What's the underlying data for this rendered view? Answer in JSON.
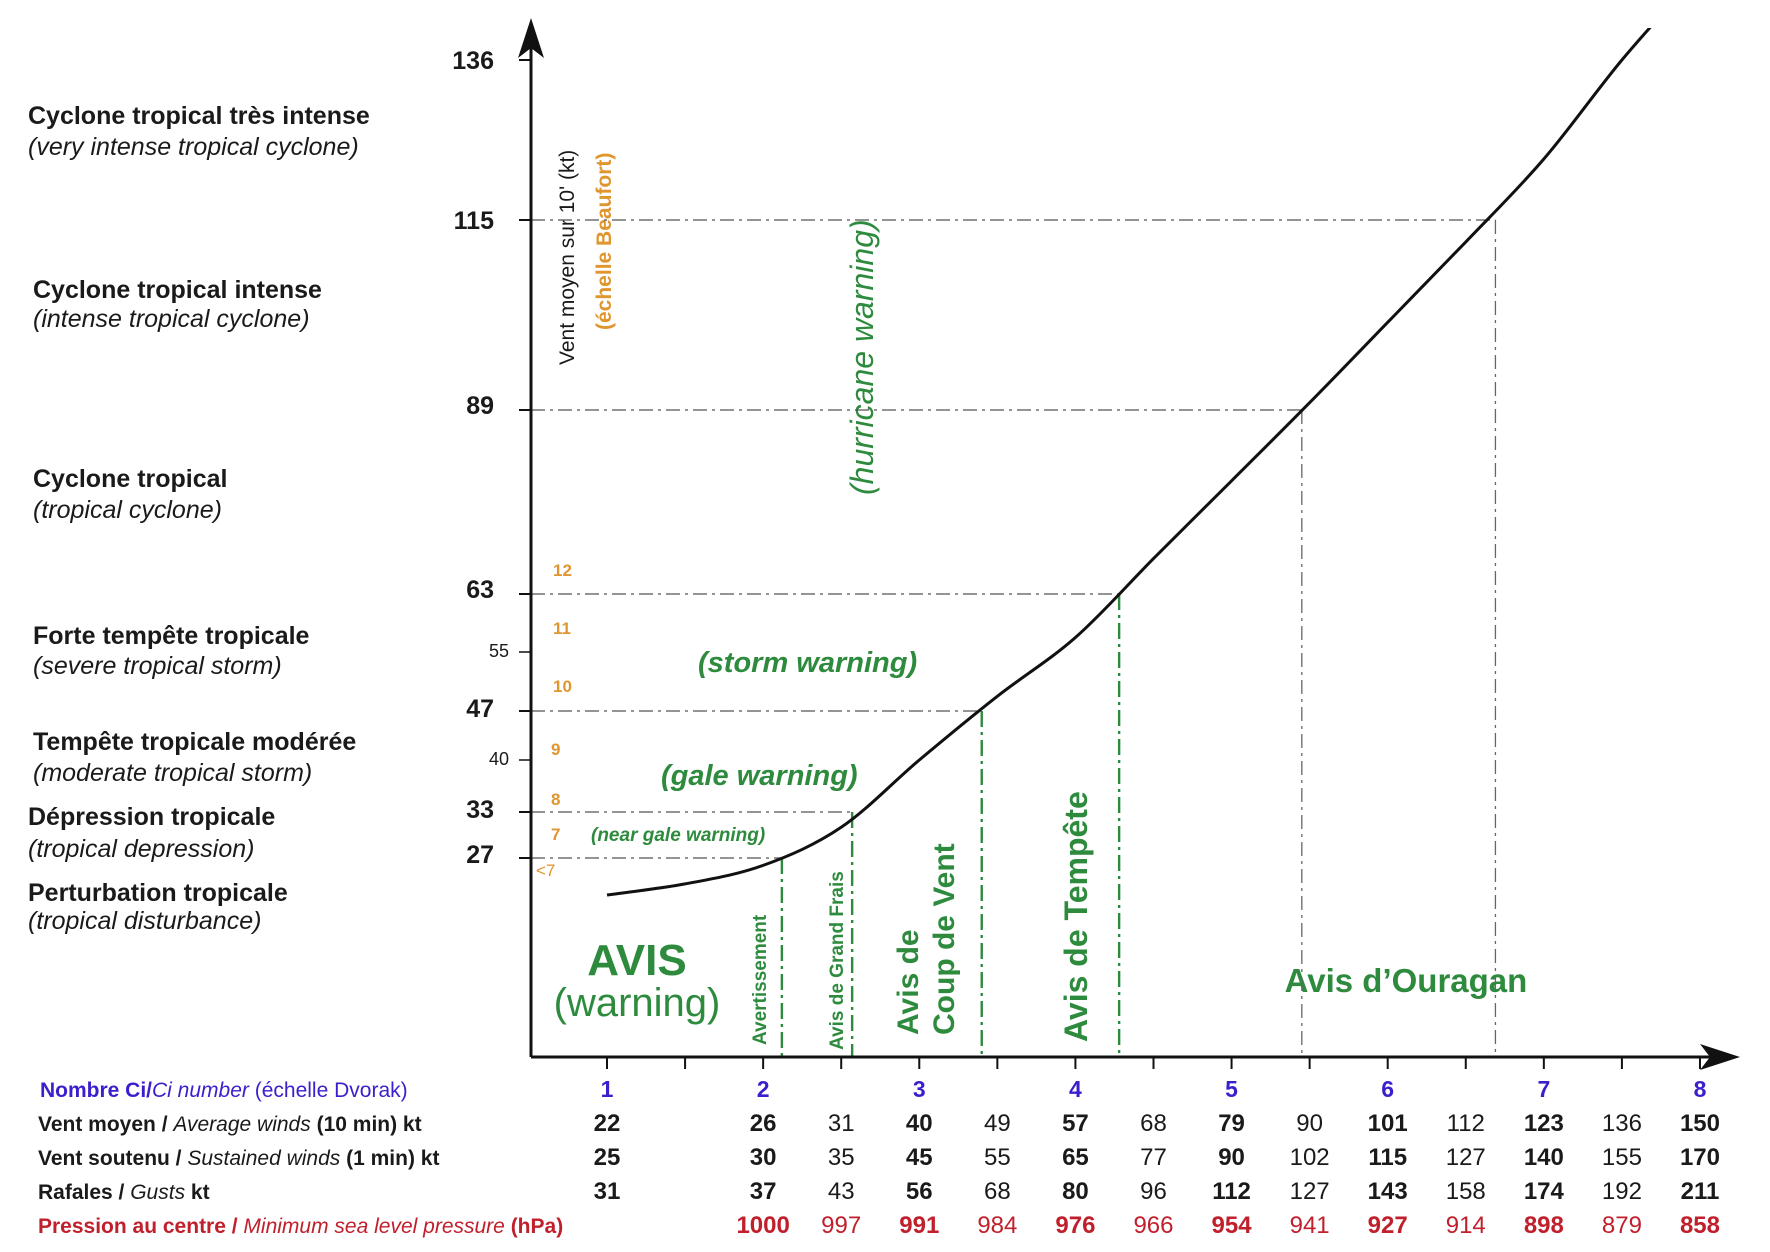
{
  "chart_data": {
    "type": "line",
    "title": "",
    "y_axis_label": "Vent moyen sur 10' (kt)",
    "y_axis_sublabel": "(échelle Beaufort)",
    "y_ticks_major": [
      "136",
      "115",
      "89",
      "63",
      "47",
      "33",
      "27"
    ],
    "y_ticks_minor": [
      "55",
      "40"
    ],
    "beaufort_labels": [
      "12",
      "11",
      "10",
      "9",
      "8",
      "7",
      "<7"
    ],
    "x_categories": [
      "1",
      "2",
      "3",
      "4",
      "5",
      "6",
      "7",
      "8"
    ],
    "curve": {
      "ci": [
        1,
        1.5,
        2,
        2.5,
        3,
        3.5,
        4,
        4.5,
        5,
        5.5,
        6,
        6.5,
        7,
        7.5,
        8
      ],
      "wind_10min_kt": [
        22,
        23.5,
        26,
        31,
        40,
        49,
        57,
        68,
        79,
        90,
        101,
        112,
        123,
        136,
        150
      ]
    },
    "thresholds": [
      {
        "wind_kt": 27,
        "ci": 2.12
      },
      {
        "wind_kt": 33,
        "ci": 2.57
      },
      {
        "wind_kt": 47,
        "ci": 3.4
      },
      {
        "wind_kt": 63,
        "ci": 4.28
      },
      {
        "wind_kt": 89,
        "ci": 5.45
      },
      {
        "wind_kt": 115,
        "ci": 6.69
      }
    ],
    "categories_fr": [
      "Cyclone tropical très intense",
      "Cyclone tropical intense",
      "Cyclone tropical",
      "Forte tempête tropicale",
      "Tempête tropicale modérée",
      "Dépression tropicale",
      "Perturbation tropicale"
    ],
    "categories_en": [
      "(very intense tropical cyclone)",
      "(intense tropical cyclone)",
      "(tropical cyclone)",
      "(severe tropical storm)",
      "(moderate tropical storm)",
      "(tropical depression)",
      "(tropical disturbance)"
    ],
    "warnings_en": {
      "hurricane": "(hurricane warning)",
      "storm": "(storm warning)",
      "gale": "(gale warning)",
      "near_gale": "(near gale warning)"
    },
    "warnings_fr": {
      "avis": "AVIS",
      "avis_en": "(warning)",
      "avertissement": "Avertissement",
      "grand_frais": "Avis de Grand Frais",
      "coup_de_vent_1": "Avis de",
      "coup_de_vent_2": "Coup de Vent",
      "tempete": "Avis de Tempête",
      "ouragan": "Avis d’Ouragan"
    },
    "table": {
      "ci_label_1": "Nombre Ci/",
      "ci_label_2": "Ci number",
      "ci_label_3": " (échelle Dvorak)",
      "rows": [
        {
          "label_fr": "Vent moyen / ",
          "label_en": "Average winds",
          "label_suffix": " (10 min) kt",
          "values": [
            "22",
            "26",
            "31",
            "40",
            "49",
            "57",
            "68",
            "79",
            "90",
            "101",
            "112",
            "123",
            "136",
            "150"
          ]
        },
        {
          "label_fr": "Vent soutenu / ",
          "label_en": "Sustained winds",
          "label_suffix": " (1 min) kt",
          "values": [
            "25",
            "30",
            "35",
            "45",
            "55",
            "65",
            "77",
            "90",
            "102",
            "115",
            "127",
            "140",
            "155",
            "170"
          ]
        },
        {
          "label_fr": "Rafales / ",
          "label_en": "Gusts",
          "label_suffix": " kt",
          "values": [
            "31",
            "37",
            "43",
            "56",
            "68",
            "80",
            "96",
            "112",
            "127",
            "143",
            "158",
            "174",
            "192",
            "211"
          ]
        },
        {
          "label_fr": "Pression au centre / ",
          "label_en": "Minimum sea level pressure",
          "label_suffix": " (hPa)",
          "values": [
            "1000",
            "997",
            "991",
            "984",
            "976",
            "966",
            "954",
            "941",
            "927",
            "914",
            "898",
            "879",
            "858"
          ]
        }
      ],
      "columns_ci": [
        1,
        2,
        2.5,
        3,
        3.5,
        4,
        4.5,
        5,
        5.5,
        6,
        6.5,
        7,
        7.5,
        8
      ],
      "pressure_columns_ci": [
        2,
        2.5,
        3,
        3.5,
        4,
        4.5,
        5,
        5.5,
        6,
        6.5,
        7,
        7.5,
        8
      ]
    },
    "colors": {
      "curve": "#111111",
      "warning_green": "#2e8b3e",
      "beaufort_orange": "#e0962e",
      "ci_blue": "#3a1fcc",
      "pressure_red": "#c0202c"
    }
  }
}
